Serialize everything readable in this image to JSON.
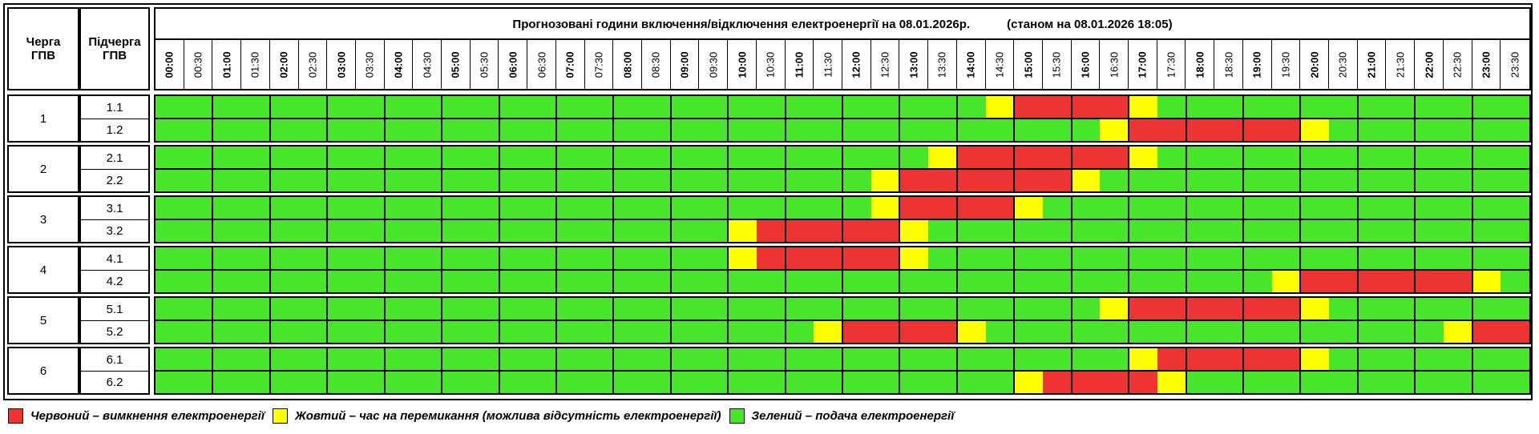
{
  "header": {
    "queue_label": "Черга\nГПВ",
    "subqueue_label": "Підчерга\nГПВ",
    "title": "Прогнозовані години включення/відключення електроенергії на 08.01.2026р.",
    "status": "(станом на 08.01.2026 18:05)"
  },
  "time_labels": [
    "00:00",
    "00:30",
    "01:00",
    "01:30",
    "02:00",
    "02:30",
    "03:00",
    "03:30",
    "04:00",
    "04:30",
    "05:00",
    "05:30",
    "06:00",
    "06:30",
    "07:00",
    "07:30",
    "08:00",
    "08:30",
    "09:00",
    "09:30",
    "10:00",
    "10:30",
    "11:00",
    "11:30",
    "12:00",
    "12:30",
    "13:00",
    "13:30",
    "14:00",
    "14:30",
    "15:00",
    "15:30",
    "16:00",
    "16:30",
    "17:00",
    "17:30",
    "18:00",
    "18:30",
    "19:00",
    "19:30",
    "20:00",
    "20:30",
    "21:00",
    "21:30",
    "22:00",
    "22:30",
    "23:00",
    "23:30"
  ],
  "colors": {
    "R": "#ee3333",
    "Y": "#ffff00",
    "G": "#48e62b"
  },
  "queues": [
    {
      "label": "1",
      "subqueues": [
        {
          "label": "1.1",
          "slots": "GGGGGGGGGGGGGGGGGGGGGGGGGGGGGYRRRRYGGGGGGGGGGGGG"
        },
        {
          "label": "1.2",
          "slots": "GGGGGGGGGGGGGGGGGGGGGGGGGGGGGGGGGYRRRRRRYGGGGGGG"
        }
      ]
    },
    {
      "label": "2",
      "subqueues": [
        {
          "label": "2.1",
          "slots": "GGGGGGGGGGGGGGGGGGGGGGGGGGGYRRRRRRYGGGGGGGGGGGGG"
        },
        {
          "label": "2.2",
          "slots": "GGGGGGGGGGGGGGGGGGGGGGGGGYRRRRRRYGGGGGGGGGGGGGGG"
        }
      ]
    },
    {
      "label": "3",
      "subqueues": [
        {
          "label": "3.1",
          "slots": "GGGGGGGGGGGGGGGGGGGGGGGGGYRRRRYGGGGGGGGGGGGGGGGG"
        },
        {
          "label": "3.2",
          "slots": "GGGGGGGGGGGGGGGGGGGGYRRRRRYGGGGGGGGGGGGGGGGGGGGG"
        }
      ]
    },
    {
      "label": "4",
      "subqueues": [
        {
          "label": "4.1",
          "slots": "GGGGGGGGGGGGGGGGGGGGYRRRRRYGGGGGGGGGGGGGGGGGGGGG"
        },
        {
          "label": "4.2",
          "slots": "GGGGGGGGGGGGGGGGGGGGGGGGGGGGGGGGGGGGGGGYRRRRRRYG"
        }
      ]
    },
    {
      "label": "5",
      "subqueues": [
        {
          "label": "5.1",
          "slots": "GGGGGGGGGGGGGGGGGGGGGGGGGGGGGGGGGYRRRRRRYGGGGGGG"
        },
        {
          "label": "5.2",
          "slots": "GGGGGGGGGGGGGGGGGGGGGGGYRRRRYGGGGGGGGGGGGGGGGYRR"
        }
      ]
    },
    {
      "label": "6",
      "subqueues": [
        {
          "label": "6.1",
          "slots": "GGGGGGGGGGGGGGGGGGGGGGGGGGGGGGGGGGYRRRRRYGGGGGGG"
        },
        {
          "label": "6.2",
          "slots": "GGGGGGGGGGGGGGGGGGGGGGGGGGGGGGYRRRRYGGGGGGGGGGGG"
        }
      ]
    }
  ],
  "legend": [
    {
      "color": "#ee3333",
      "text": "Червоний – вимкнення електроенергії"
    },
    {
      "color": "#ffff00",
      "text": "Жовтий – час на перемикання (можлива відсутність електроенергії)"
    },
    {
      "color": "#48e62b",
      "text": "Зелений – подача електроенергії"
    }
  ]
}
